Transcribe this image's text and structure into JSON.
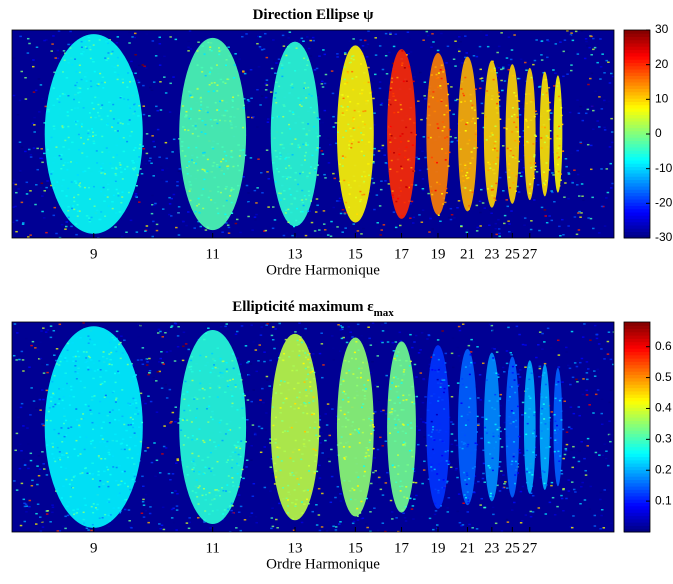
{
  "chart_data": [
    {
      "type": "heatmap",
      "title": "Direction Ellipse ψ",
      "xlabel": "Ordre Harmonique",
      "xscale": "reciprocal",
      "xlim": [
        8,
        44
      ],
      "xticks": [
        9,
        11,
        13,
        15,
        17,
        19,
        21,
        23,
        25,
        27
      ],
      "orders": [
        9,
        11,
        13,
        15,
        17,
        19,
        21,
        23,
        25,
        27,
        29,
        31
      ],
      "values": [
        -7,
        -3,
        -5,
        8,
        20,
        15,
        12,
        10,
        10,
        10,
        9,
        8
      ],
      "clim": [
        -30,
        30
      ],
      "cticks": [
        -30,
        -20,
        -10,
        0,
        10,
        20,
        30
      ],
      "colormap": "jet"
    },
    {
      "type": "heatmap",
      "title": "Ellipticité maximum ε",
      "title_subscript": "max",
      "xlabel": "Ordre Harmonique",
      "xscale": "reciprocal",
      "xlim": [
        8,
        44
      ],
      "xticks": [
        9,
        11,
        13,
        15,
        17,
        19,
        21,
        23,
        25,
        27
      ],
      "orders": [
        9,
        11,
        13,
        15,
        17,
        19,
        21,
        23,
        25,
        27,
        29,
        31
      ],
      "values": [
        0.25,
        0.28,
        0.38,
        0.35,
        0.33,
        0.12,
        0.15,
        0.18,
        0.15,
        0.2,
        0.2,
        0.15
      ],
      "clim": [
        0,
        0.68
      ],
      "cticks": [
        0.1,
        0.2,
        0.3,
        0.4,
        0.5,
        0.6
      ],
      "colormap": "jet"
    }
  ]
}
